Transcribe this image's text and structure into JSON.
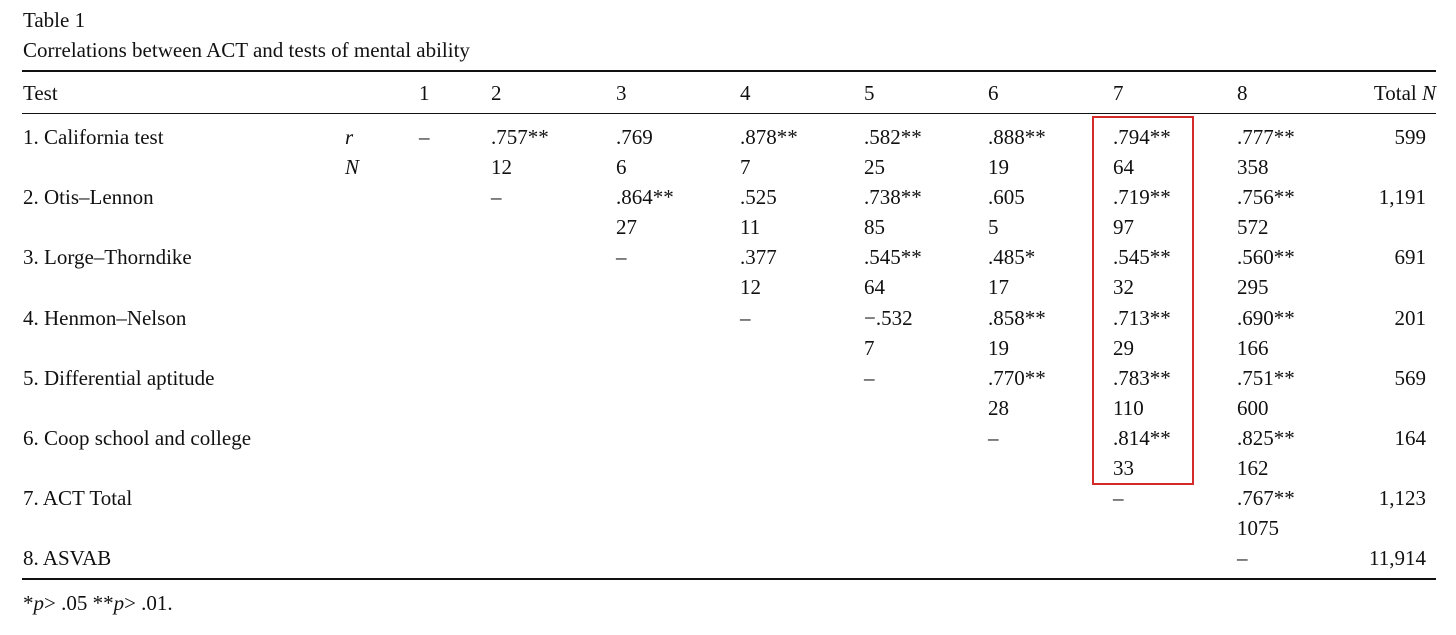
{
  "table": {
    "label": "Table 1",
    "title": "Correlations between ACT and tests of mental ability",
    "headers": {
      "test": "Test",
      "cols": [
        "1",
        "2",
        "3",
        "4",
        "5",
        "6",
        "7",
        "8"
      ],
      "total_prefix": "Total ",
      "total_n": "N"
    },
    "stat_labels": {
      "r": "r",
      "n": "N"
    },
    "rows": [
      {
        "name": "1. California test",
        "r": [
          "–",
          ".757**",
          ".769",
          ".878**",
          ".582**",
          ".888**",
          ".794**",
          ".777**"
        ],
        "n": [
          "",
          "12",
          "6",
          "7",
          "25",
          "19",
          "64",
          "358"
        ],
        "total": "599"
      },
      {
        "name": "2. Otis–Lennon",
        "r": [
          "",
          "–",
          ".864**",
          ".525",
          ".738**",
          ".605",
          ".719**",
          ".756**"
        ],
        "n": [
          "",
          "",
          "27",
          "11",
          "85",
          "5",
          "97",
          "572"
        ],
        "total": "1,191"
      },
      {
        "name": "3. Lorge–Thorndike",
        "r": [
          "",
          "",
          "–",
          ".377",
          ".545**",
          ".485*",
          ".545**",
          ".560**"
        ],
        "n": [
          "",
          "",
          "",
          "12",
          "64",
          "17",
          "32",
          "295"
        ],
        "total": "691"
      },
      {
        "name": "4. Henmon–Nelson",
        "r": [
          "",
          "",
          "",
          "–",
          "−.532",
          ".858**",
          ".713**",
          ".690**"
        ],
        "n": [
          "",
          "",
          "",
          "",
          "7",
          "19",
          "29",
          "166"
        ],
        "total": "201"
      },
      {
        "name": "5. Differential aptitude",
        "r": [
          "",
          "",
          "",
          "",
          "–",
          ".770**",
          ".783**",
          ".751**"
        ],
        "n": [
          "",
          "",
          "",
          "",
          "",
          "28",
          "110",
          "600"
        ],
        "total": "569"
      },
      {
        "name": "6. Coop school and college",
        "r": [
          "",
          "",
          "",
          "",
          "",
          "–",
          ".814**",
          ".825**"
        ],
        "n": [
          "",
          "",
          "",
          "",
          "",
          "",
          "33",
          "162"
        ],
        "total": "164"
      },
      {
        "name": "7. ACT Total",
        "r": [
          "",
          "",
          "",
          "",
          "",
          "",
          "–",
          ".767**"
        ],
        "n": [
          "",
          "",
          "",
          "",
          "",
          "",
          "",
          "1075"
        ],
        "total": "1,123"
      },
      {
        "name": "8. ASVAB",
        "r": [
          "",
          "",
          "",
          "",
          "",
          "",
          "",
          "–"
        ],
        "n": [
          "",
          "",
          "",
          "",
          "",
          "",
          "",
          ""
        ],
        "total": "11,914"
      }
    ],
    "highlight_color": "#d42a2a"
  },
  "footnote": {
    "star1": "*",
    "p1": "p",
    "rest1": "> .05 **",
    "p2": "p",
    "rest2": "> .01."
  }
}
